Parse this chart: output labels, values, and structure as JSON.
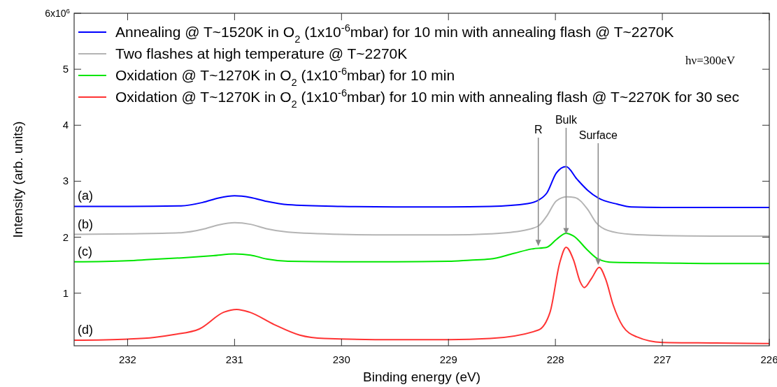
{
  "chart_data": {
    "type": "line",
    "xlabel": "Binding energy (eV)",
    "ylabel": "Intensity (arb. units)",
    "xlim": [
      232.5,
      226
    ],
    "xticks": [
      232,
      231,
      230,
      229,
      228,
      227,
      226
    ],
    "ylim": [
      0.06,
      6
    ],
    "yticks": [
      1,
      2,
      3,
      4,
      5,
      {
        "value": 6,
        "label": null
      }
    ],
    "grid": false,
    "legend": "top left",
    "line_style": "solid",
    "marker": "none",
    "series": [
      {
        "name": "Annealing @ T~1520K in O$_{2}$ (1x10$^{-6}$mbar) for 10 min with annealing flash @ T~2270K",
        "color": "#0000ff",
        "x": [
          232.5,
          232,
          231.5,
          231.3,
          231.15,
          231,
          230.85,
          230.7,
          230.5,
          230,
          229.5,
          229,
          228.61,
          228.26,
          228.16,
          228.08,
          227.99,
          227.9,
          227.8,
          227.7,
          227.6,
          227.42,
          227.29,
          227,
          226.5,
          226
        ],
        "values": [
          2.55,
          2.55,
          2.56,
          2.62,
          2.7,
          2.74,
          2.71,
          2.64,
          2.58,
          2.55,
          2.54,
          2.54,
          2.55,
          2.6,
          2.66,
          2.79,
          3.15,
          3.26,
          3.04,
          2.84,
          2.7,
          2.59,
          2.54,
          2.53,
          2.53,
          2.53
        ]
      },
      {
        "name": "Two flashes at high temperature @ T~2270K",
        "color": "#b4b4b4",
        "x": [
          232.5,
          232,
          231.5,
          231.3,
          231.15,
          231,
          230.85,
          230.7,
          230.5,
          230,
          229.5,
          229,
          228.61,
          228.3,
          228.16,
          228.08,
          227.99,
          227.89,
          227.82,
          227.7,
          227.62,
          227.51,
          227.29,
          227,
          226.5,
          226
        ],
        "values": [
          2.05,
          2.06,
          2.08,
          2.14,
          2.22,
          2.26,
          2.23,
          2.15,
          2.09,
          2.05,
          2.04,
          2.04,
          2.06,
          2.12,
          2.2,
          2.38,
          2.65,
          2.72,
          2.71,
          2.5,
          2.26,
          2.12,
          2.05,
          2.03,
          2.02,
          2.02
        ]
      },
      {
        "name": "Oxidation @ T~1270K in O$_{2}$ (1x10$^{-6}$mbar) for 10 min",
        "color": "#00e600",
        "x": [
          232.5,
          232,
          231.8,
          231.5,
          231.2,
          231,
          230.85,
          230.7,
          230.5,
          230,
          229.5,
          229,
          228.8,
          228.61,
          228.39,
          228.22,
          228.08,
          227.99,
          227.9,
          227.83,
          227.7,
          227.6,
          227.46,
          227,
          226.5,
          226
        ],
        "values": [
          1.56,
          1.58,
          1.6,
          1.63,
          1.67,
          1.7,
          1.68,
          1.61,
          1.57,
          1.56,
          1.56,
          1.57,
          1.59,
          1.61,
          1.71,
          1.79,
          1.82,
          1.96,
          2.07,
          2.02,
          1.77,
          1.61,
          1.55,
          1.54,
          1.53,
          1.53
        ]
      },
      {
        "name": "Oxidation @ T~1270K in O$_{2}$ (1x10$^{-6}$mbar) for 10 min with annealing flash @ T~2270K for 30 sec",
        "color": "#ff3333",
        "x": [
          232.5,
          232,
          231.75,
          231.57,
          231.33,
          231.1,
          230.98,
          230.86,
          230.63,
          230.39,
          230.16,
          229.5,
          229,
          228.61,
          228.16,
          228.05,
          227.96,
          227.9,
          227.83,
          227.77,
          227.73,
          227.66,
          227.59,
          227.53,
          227.46,
          227.37,
          227.24,
          227,
          226.5,
          226
        ],
        "values": [
          0.16,
          0.18,
          0.21,
          0.26,
          0.36,
          0.66,
          0.71,
          0.66,
          0.44,
          0.25,
          0.19,
          0.17,
          0.17,
          0.19,
          0.34,
          0.66,
          1.54,
          1.82,
          1.59,
          1.21,
          1.1,
          1.27,
          1.46,
          1.25,
          0.79,
          0.41,
          0.22,
          0.12,
          0.11,
          0.1
        ]
      }
    ],
    "annotations": [
      {
        "text": "R",
        "x": 228.16,
        "y": 1.84
      },
      {
        "text": "Bulk",
        "x": 227.9,
        "y": 2.05
      },
      {
        "text": "Surface",
        "x": 227.6,
        "y": 1.5
      },
      "(a)",
      "(b)",
      "(c)",
      "(d)",
      "hν=300eV",
      "6x10$^{6}$"
    ]
  }
}
